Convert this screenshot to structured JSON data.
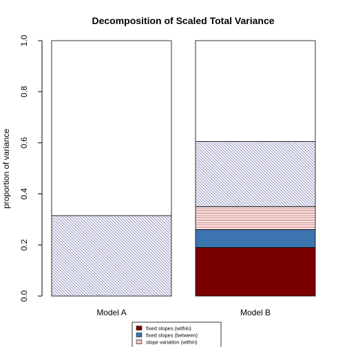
{
  "chart_data": {
    "type": "bar",
    "stacked": true,
    "title": "Decomposition of Scaled Total Variance",
    "xlabel": "",
    "ylabel": "proportion of variance",
    "ylim": [
      0,
      1
    ],
    "yticks": [
      "0.0",
      "0.2",
      "0.4",
      "0.6",
      "0.8",
      "1.0"
    ],
    "categories": [
      "Model A",
      "Model B"
    ],
    "series": [
      {
        "name": "fixed slopes (within)",
        "values": [
          0,
          0.19
        ],
        "color": "#7a0000",
        "pattern": "solid"
      },
      {
        "name": "fixed slopes (between)",
        "values": [
          0,
          0.07
        ],
        "color": "#3c74b0",
        "pattern": "solid"
      },
      {
        "name": "slope variation (within)",
        "values": [
          0,
          0.09
        ],
        "color": "#c0504d",
        "pattern": "horizontal-lines"
      },
      {
        "name": "",
        "values": [
          0.315,
          0.255
        ],
        "color": "#5a5aa0",
        "pattern": "diagonal-lines"
      },
      {
        "name": "",
        "values": [
          0.685,
          0.395
        ],
        "color": "#ffffff",
        "pattern": "none"
      }
    ],
    "legend_position": "bottom"
  }
}
